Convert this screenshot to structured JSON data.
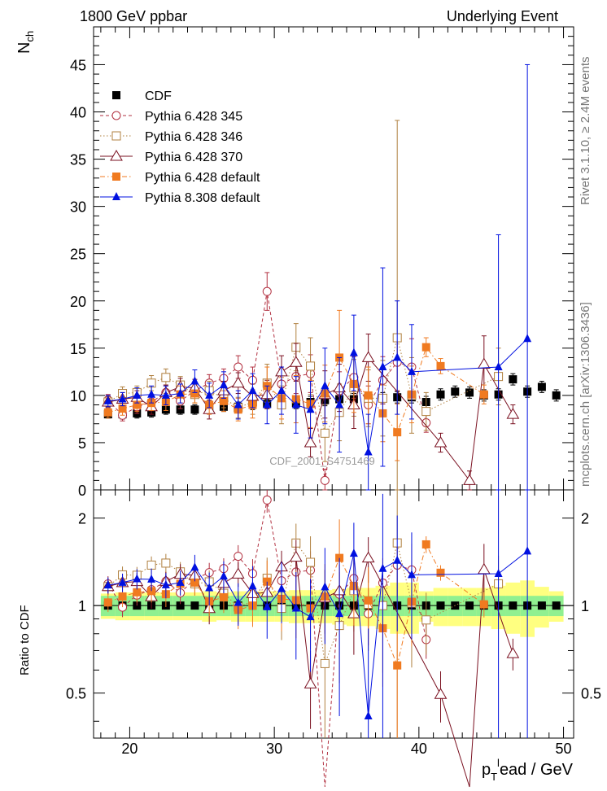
{
  "header": {
    "left_title": "1800 GeV ppbar",
    "right_title": "Underlying Event"
  },
  "side_text": {
    "rivet": "Rivet 3.1.10, ≥ 2.4M events",
    "mcplots": "mcplots.cern.ch [arXiv:1306.3436]"
  },
  "watermark": "CDF_2001_S4751469",
  "axes": {
    "ylabel_main": "N",
    "ylabel_main_sub": "ch",
    "ylabel_ratio": "Ratio to CDF",
    "xlabel_p": "p",
    "xlabel_sub": "T",
    "xlabel_sup": "l",
    "xlabel_rest": "ead / GeV",
    "x_ticks": [
      "20",
      "30",
      "40",
      "50"
    ],
    "y_ticks_main": [
      "0",
      "5",
      "10",
      "15",
      "20",
      "25",
      "30",
      "35",
      "40",
      "45"
    ],
    "y_ticks_ratio": [
      "0.5",
      "1",
      "2"
    ]
  },
  "chart_data": {
    "type": "scatter",
    "title": "Underlying Event",
    "xlim": [
      17.5,
      50.7
    ],
    "ylim_main": [
      0,
      49
    ],
    "ylim_ratio": [
      0.35,
      2.5
    ],
    "ratio_scale": "log",
    "series": [
      {
        "name": "CDF",
        "color": "#000000",
        "marker": "filled-square",
        "line": "none",
        "x": [
          18.5,
          19.5,
          20.5,
          21.5,
          22.5,
          23.5,
          24.5,
          25.5,
          26.5,
          27.5,
          28.5,
          29.5,
          30.5,
          31.5,
          32.5,
          33.5,
          34.5,
          35.5,
          36.5,
          37.5,
          38.5,
          39.5,
          40.5,
          41.5,
          42.5,
          43.5,
          44.5,
          45.5,
          46.5,
          47.5,
          48.5,
          49.5
        ],
        "y": [
          8.0,
          8.0,
          8.1,
          8.2,
          8.5,
          8.5,
          8.5,
          8.7,
          8.8,
          8.8,
          9.0,
          9.1,
          9.2,
          9.2,
          9.3,
          9.5,
          9.6,
          9.6,
          9.6,
          9.7,
          9.8,
          9.8,
          9.3,
          10.1,
          10.4,
          10.3,
          10.0,
          10.1,
          11.7,
          10.4,
          10.9,
          10.0
        ],
        "err": [
          0.4,
          0.5,
          0.5,
          0.5,
          0.5,
          0.5,
          0.5,
          0.5,
          0.5,
          0.5,
          0.5,
          0.5,
          0.6,
          0.6,
          0.6,
          0.6,
          0.6,
          0.6,
          0.6,
          0.6,
          0.6,
          0.6,
          0.6,
          0.6,
          0.6,
          0.6,
          0.6,
          0.6,
          0.6,
          0.6,
          0.6,
          0.6
        ]
      },
      {
        "name": "Pythia 6.428 345",
        "color": "#b23040",
        "marker": "open-circle",
        "line": "dashed",
        "x": [
          18.5,
          19.5,
          20.5,
          21.5,
          22.5,
          23.5,
          24.5,
          25.5,
          26.5,
          27.5,
          28.5,
          29.5,
          30.5,
          31.5,
          32.5,
          33.5,
          34.5,
          35.5,
          36.5,
          37.5,
          38.5,
          39.5,
          40.5
        ],
        "y": [
          9.5,
          7.9,
          8.8,
          9.3,
          10.3,
          9.4,
          10.5,
          11.3,
          11.8,
          13.0,
          11.6,
          21.0,
          11.2,
          12.0,
          12.3,
          1.0,
          10.5,
          11.9,
          9.0,
          11.6,
          13.5,
          13.0,
          7.1
        ],
        "err": [
          0.6,
          0.6,
          0.7,
          0.7,
          0.8,
          0.8,
          0.8,
          0.9,
          1.0,
          1.2,
          1.4,
          2.0,
          1.6,
          1.8,
          2.0,
          1.2,
          2.0,
          2.2,
          2.0,
          2.5,
          3.0,
          3.0,
          1.0
        ]
      },
      {
        "name": "Pythia 6.428 346",
        "color": "#b08040",
        "marker": "open-square",
        "line": "dotted",
        "x": [
          18.5,
          19.5,
          20.5,
          21.5,
          22.5,
          23.5,
          24.5,
          25.5,
          26.5,
          27.5,
          28.5,
          29.5,
          30.5,
          31.5,
          32.5,
          33.5,
          34.5,
          35.5,
          36.5,
          37.5,
          38.5,
          39.5,
          40.5,
          45.5
        ],
        "y": [
          9.3,
          10.2,
          10.3,
          11.3,
          11.9,
          11.1,
          10.1,
          10.5,
          9.7,
          8.7,
          9.3,
          11.3,
          9.0,
          15.1,
          13.1,
          6.0,
          8.2,
          10.8,
          9.7,
          9.7,
          16.1,
          10.0,
          8.3,
          12.0
        ],
        "err": [
          0.6,
          0.7,
          0.7,
          0.8,
          0.9,
          0.9,
          0.9,
          1.0,
          1.0,
          1.1,
          1.3,
          2.0,
          2.0,
          2.5,
          3.0,
          3.0,
          3.0,
          3.0,
          3.0,
          4.0,
          23.0,
          4.0,
          2.0,
          3.0
        ]
      },
      {
        "name": "Pythia 6.428 370",
        "color": "#7a1020",
        "marker": "open-triangle",
        "line": "solid",
        "x": [
          18.5,
          19.5,
          20.5,
          21.5,
          22.5,
          23.5,
          24.5,
          25.5,
          26.5,
          27.5,
          28.5,
          29.5,
          30.5,
          31.5,
          32.5,
          33.5,
          34.5,
          35.5,
          36.5,
          41.5,
          43.5,
          44.5,
          46.5
        ],
        "y": [
          9.3,
          9.6,
          9.8,
          8.8,
          10.3,
          10.9,
          10.8,
          8.5,
          10.5,
          11.3,
          9.9,
          10.1,
          12.5,
          13.5,
          5.0,
          10.1,
          10.8,
          9.0,
          14.0,
          5.0,
          1.0,
          13.3,
          8.0
        ],
        "err": [
          0.6,
          0.7,
          0.7,
          0.8,
          0.8,
          0.9,
          0.9,
          1.0,
          1.0,
          1.1,
          1.3,
          1.5,
          1.7,
          2.0,
          1.5,
          2.5,
          2.5,
          2.5,
          2.5,
          1.0,
          1.0,
          3.0,
          1.0
        ]
      },
      {
        "name": "Pythia 6.428 default",
        "color": "#f07a20",
        "marker": "filled-square",
        "line": "dashdot",
        "x": [
          18.5,
          19.5,
          20.5,
          21.5,
          22.5,
          23.5,
          24.5,
          25.5,
          26.5,
          27.5,
          28.5,
          29.5,
          30.5,
          31.5,
          32.5,
          33.5,
          34.5,
          35.5,
          36.5,
          37.5,
          38.5,
          39.5,
          40.5,
          41.5,
          44.5
        ],
        "y": [
          8.2,
          8.6,
          9.0,
          9.2,
          9.3,
          10.1,
          10.2,
          9.0,
          9.4,
          8.5,
          9.0,
          11.0,
          9.7,
          9.6,
          9.1,
          10.2,
          14.0,
          11.2,
          10.0,
          8.1,
          6.1,
          10.1,
          15.1,
          13.1,
          10.1
        ],
        "err": [
          0.6,
          0.7,
          0.7,
          0.8,
          0.9,
          0.9,
          1.0,
          1.0,
          1.1,
          1.2,
          1.4,
          2.0,
          2.2,
          2.5,
          2.5,
          3.0,
          5.0,
          3.0,
          3.0,
          3.0,
          3.0,
          3.0,
          1.0,
          0.8,
          1.0
        ]
      },
      {
        "name": "Pythia 8.308 default",
        "color": "#0010e0",
        "marker": "filled-triangle",
        "line": "solid",
        "x": [
          18.5,
          19.5,
          20.5,
          21.5,
          22.5,
          23.5,
          24.5,
          25.5,
          26.5,
          27.5,
          28.5,
          29.5,
          30.5,
          31.5,
          32.5,
          33.5,
          34.5,
          35.5,
          36.5,
          37.5,
          38.5,
          39.5,
          45.5,
          47.5
        ],
        "y": [
          9.4,
          9.6,
          10.0,
          10.1,
          10.0,
          10.2,
          11.5,
          10.0,
          11.1,
          9.0,
          10.5,
          9.0,
          10.5,
          9.0,
          8.5,
          11.0,
          9.0,
          14.5,
          4.0,
          13.0,
          14.0,
          12.5,
          13.0,
          16.0
        ],
        "err": [
          0.6,
          0.7,
          0.8,
          0.9,
          1.0,
          1.0,
          1.2,
          1.3,
          1.4,
          1.5,
          1.8,
          2.0,
          2.5,
          3.0,
          3.0,
          4.0,
          5.0,
          4.0,
          4.0,
          10.5,
          6.0,
          5.0,
          14.0,
          29.0
        ]
      }
    ],
    "ratio_band_inner": [
      0.08,
      0.08,
      0.08,
      0.08,
      0.08,
      0.08,
      0.08,
      0.08,
      0.08,
      0.08,
      0.08,
      0.08,
      0.08,
      0.08,
      0.08,
      0.08,
      0.08,
      0.08,
      0.08,
      0.08,
      0.08,
      0.08,
      0.08,
      0.08,
      0.08,
      0.08,
      0.08,
      0.08,
      0.08,
      0.08,
      0.08,
      0.08
    ],
    "ratio_band_outer": [
      0.1,
      0.11,
      0.11,
      0.11,
      0.11,
      0.11,
      0.11,
      0.12,
      0.11,
      0.12,
      0.12,
      0.12,
      0.12,
      0.13,
      0.13,
      0.13,
      0.14,
      0.15,
      0.15,
      0.17,
      0.2,
      0.2,
      0.12,
      0.15,
      0.15,
      0.15,
      0.15,
      0.17,
      0.2,
      0.22,
      0.16,
      0.12
    ]
  }
}
